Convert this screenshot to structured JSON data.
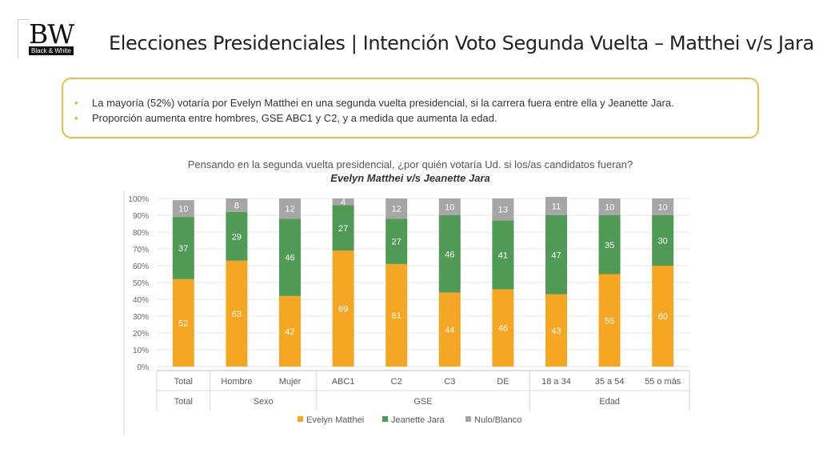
{
  "logo": {
    "mark": "BW",
    "tagline": "Black & White"
  },
  "title": "Elecciones Presidenciales | Intención Voto Segunda Vuelta – Matthei v/s Jara",
  "bullets": [
    "La mayoría (52%) votaría por Evelyn Matthei en una segunda vuelta presidencial, si la carrera fuera entre ella y Jeanette Jara.",
    "Proporción aumenta entre hombres, GSE ABC1 y C2, y a medida que aumenta la edad."
  ],
  "colors": {
    "accent": "#f2b94a",
    "matthei": "#f5a623",
    "jara": "#4f9a55",
    "nulo": "#a6a6a6"
  },
  "chart_data": {
    "type": "bar",
    "stacked": true,
    "title": "Pensando en la segunda vuelta presidencial, ¿por quién votaría Ud. si los/as candidatos fueran?",
    "subtitle": "Evelyn Matthei v/s Jeanette Jara",
    "categories": [
      "Total",
      "Hombre",
      "Mujer",
      "ABC1",
      "C2",
      "C3",
      "DE",
      "18 a 34",
      "35 a 54",
      "55 o más"
    ],
    "groups": [
      {
        "label": "Total",
        "count": 1
      },
      {
        "label": "Sexo",
        "count": 2
      },
      {
        "label": "GSE",
        "count": 4
      },
      {
        "label": "Edad",
        "count": 3
      }
    ],
    "series": [
      {
        "name": "Evelyn Matthei",
        "color": "#f5a623",
        "values": [
          52,
          63,
          42,
          69,
          61,
          44,
          46,
          43,
          55,
          60
        ]
      },
      {
        "name": "Jeanette Jara",
        "color": "#4f9a55",
        "values": [
          37,
          29,
          46,
          27,
          27,
          46,
          41,
          47,
          35,
          30
        ]
      },
      {
        "name": "Nulo/Blanco",
        "color": "#a6a6a6",
        "values": [
          10,
          8,
          12,
          4,
          12,
          10,
          13,
          11,
          10,
          10
        ]
      }
    ],
    "yticks": [
      "0%",
      "10%",
      "20%",
      "30%",
      "40%",
      "50%",
      "60%",
      "70%",
      "80%",
      "90%",
      "100%"
    ],
    "ylim": [
      0,
      100
    ],
    "legend": "bottom-center"
  }
}
